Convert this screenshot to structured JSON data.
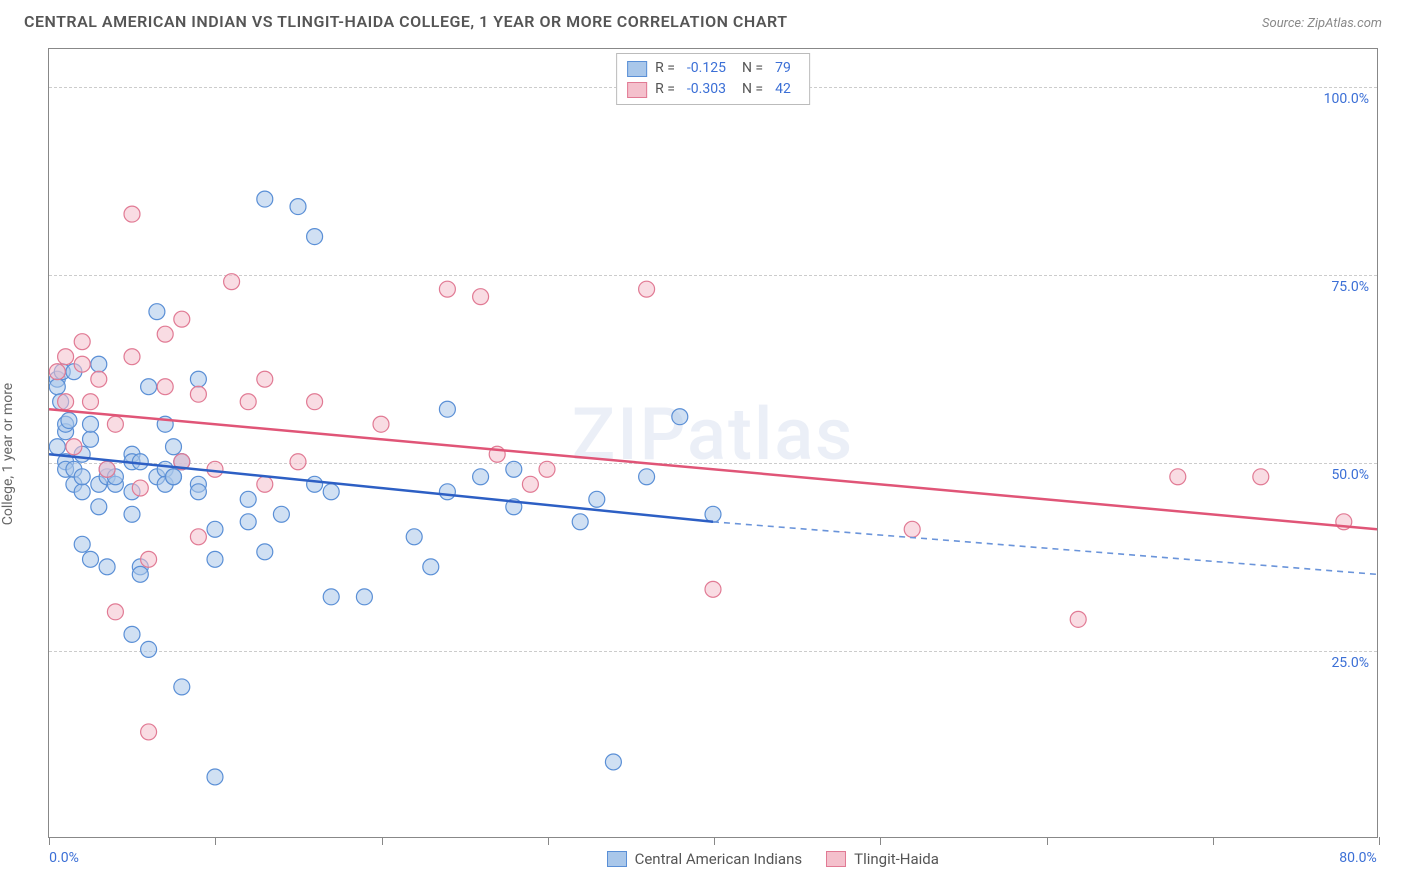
{
  "title": "CENTRAL AMERICAN INDIAN VS TLINGIT-HAIDA COLLEGE, 1 YEAR OR MORE CORRELATION CHART",
  "source": "Source: ZipAtlas.com",
  "y_axis_label": "College, 1 year or more",
  "watermark": "ZIPatlas",
  "chart": {
    "type": "scatter-correlation",
    "background_color": "#ffffff",
    "grid_color": "#cccccc",
    "border_color": "#888888",
    "tick_label_color": "#3b6fd6",
    "xlim": [
      0,
      80
    ],
    "ylim": [
      0,
      105
    ],
    "xtick_positions": [
      0,
      10,
      20,
      30,
      40,
      50,
      60,
      70,
      80
    ],
    "xtick_labels": {
      "0": "0.0%",
      "80": "80.0%"
    },
    "ytick_positions": [
      25,
      50,
      75,
      100
    ],
    "ytick_labels": {
      "25": "25.0%",
      "50": "50.0%",
      "75": "75.0%",
      "100": "100.0%"
    },
    "marker_radius": 8,
    "marker_opacity": 0.55,
    "series": [
      {
        "name": "Central American Indians",
        "color_fill": "#a9c7ea",
        "color_stroke": "#5a8fd6",
        "R": "-0.125",
        "N": "79",
        "trend": {
          "x1": 0,
          "y1": 51,
          "x2": 40,
          "y2": 42,
          "x2_ext": 80,
          "y2_ext": 35,
          "solid_color": "#2d5fc4",
          "dash_color": "#6a94da",
          "width": 2.5
        },
        "points": [
          [
            0.5,
            61
          ],
          [
            0.5,
            60
          ],
          [
            0.5,
            52
          ],
          [
            0.7,
            58
          ],
          [
            0.8,
            62
          ],
          [
            1,
            54
          ],
          [
            1,
            50
          ],
          [
            1,
            55
          ],
          [
            1,
            49
          ],
          [
            1.2,
            55.5
          ],
          [
            1.5,
            62
          ],
          [
            1.5,
            47
          ],
          [
            1.5,
            49
          ],
          [
            2,
            51
          ],
          [
            2,
            46
          ],
          [
            2,
            39
          ],
          [
            2,
            48
          ],
          [
            2.5,
            53
          ],
          [
            2.5,
            55
          ],
          [
            2.5,
            37
          ],
          [
            3,
            47
          ],
          [
            3,
            44
          ],
          [
            3,
            63
          ],
          [
            3.5,
            48
          ],
          [
            3.5,
            49
          ],
          [
            3.5,
            36
          ],
          [
            4,
            47
          ],
          [
            4,
            48
          ],
          [
            5,
            51
          ],
          [
            5,
            50
          ],
          [
            5,
            46
          ],
          [
            5,
            43
          ],
          [
            5,
            27
          ],
          [
            5.5,
            50
          ],
          [
            5.5,
            36
          ],
          [
            5.5,
            35
          ],
          [
            6,
            60
          ],
          [
            6,
            25
          ],
          [
            6.5,
            70
          ],
          [
            6.5,
            48
          ],
          [
            7,
            55
          ],
          [
            7,
            49
          ],
          [
            7,
            47
          ],
          [
            7.5,
            52
          ],
          [
            7.5,
            48
          ],
          [
            7.5,
            48
          ],
          [
            8,
            50
          ],
          [
            8,
            50
          ],
          [
            8,
            20
          ],
          [
            9,
            47
          ],
          [
            9,
            46
          ],
          [
            9,
            61
          ],
          [
            10,
            41
          ],
          [
            10,
            37
          ],
          [
            10,
            8
          ],
          [
            12,
            45
          ],
          [
            12,
            42
          ],
          [
            13,
            38
          ],
          [
            13,
            85
          ],
          [
            14,
            43
          ],
          [
            15,
            84
          ],
          [
            16,
            80
          ],
          [
            16,
            47
          ],
          [
            17,
            32
          ],
          [
            17,
            46
          ],
          [
            19,
            32
          ],
          [
            22,
            40
          ],
          [
            23,
            36
          ],
          [
            24,
            57
          ],
          [
            24,
            46
          ],
          [
            26,
            48
          ],
          [
            28,
            49
          ],
          [
            28,
            44
          ],
          [
            32,
            42
          ],
          [
            33,
            45
          ],
          [
            34,
            10
          ],
          [
            36,
            48
          ],
          [
            38,
            56
          ],
          [
            40,
            43
          ]
        ]
      },
      {
        "name": "Tlingit-Haida",
        "color_fill": "#f4c0cc",
        "color_stroke": "#e17a94",
        "R": "-0.303",
        "N": "42",
        "trend": {
          "x1": 0,
          "y1": 57,
          "x2": 80,
          "y2": 41,
          "solid_color": "#e05577",
          "width": 2.5
        },
        "points": [
          [
            0.5,
            62
          ],
          [
            1,
            64
          ],
          [
            1,
            58
          ],
          [
            1.5,
            52
          ],
          [
            2,
            66
          ],
          [
            2,
            63
          ],
          [
            2.5,
            58
          ],
          [
            3,
            61
          ],
          [
            3.5,
            49
          ],
          [
            4,
            55
          ],
          [
            4,
            30
          ],
          [
            5,
            83
          ],
          [
            5,
            64
          ],
          [
            5.5,
            46.5
          ],
          [
            6,
            37
          ],
          [
            6,
            14
          ],
          [
            7,
            67
          ],
          [
            7,
            60
          ],
          [
            8,
            69
          ],
          [
            8,
            50
          ],
          [
            9,
            40
          ],
          [
            9,
            59
          ],
          [
            10,
            49
          ],
          [
            11,
            74
          ],
          [
            12,
            58
          ],
          [
            13,
            61
          ],
          [
            13,
            47
          ],
          [
            15,
            50
          ],
          [
            16,
            58
          ],
          [
            20,
            55
          ],
          [
            24,
            73
          ],
          [
            26,
            72
          ],
          [
            27,
            51
          ],
          [
            29,
            47
          ],
          [
            30,
            49
          ],
          [
            36,
            73
          ],
          [
            40,
            33
          ],
          [
            52,
            41
          ],
          [
            62,
            29
          ],
          [
            68,
            48
          ],
          [
            73,
            48
          ],
          [
            78,
            42
          ]
        ]
      }
    ],
    "legend_top": {
      "rows": [
        {
          "swatch_fill": "#a9c7ea",
          "swatch_stroke": "#5a8fd6",
          "label_r": "R =",
          "val_r": "-0.125",
          "label_n": "N =",
          "val_n": "79"
        },
        {
          "swatch_fill": "#f4c0cc",
          "swatch_stroke": "#e17a94",
          "label_r": "R =",
          "val_r": "-0.303",
          "label_n": "N =",
          "val_n": "42"
        }
      ]
    },
    "legend_bottom": {
      "items": [
        {
          "swatch_fill": "#a9c7ea",
          "swatch_stroke": "#5a8fd6",
          "label": "Central American Indians"
        },
        {
          "swatch_fill": "#f4c0cc",
          "swatch_stroke": "#e17a94",
          "label": "Tlingit-Haida"
        }
      ]
    }
  }
}
